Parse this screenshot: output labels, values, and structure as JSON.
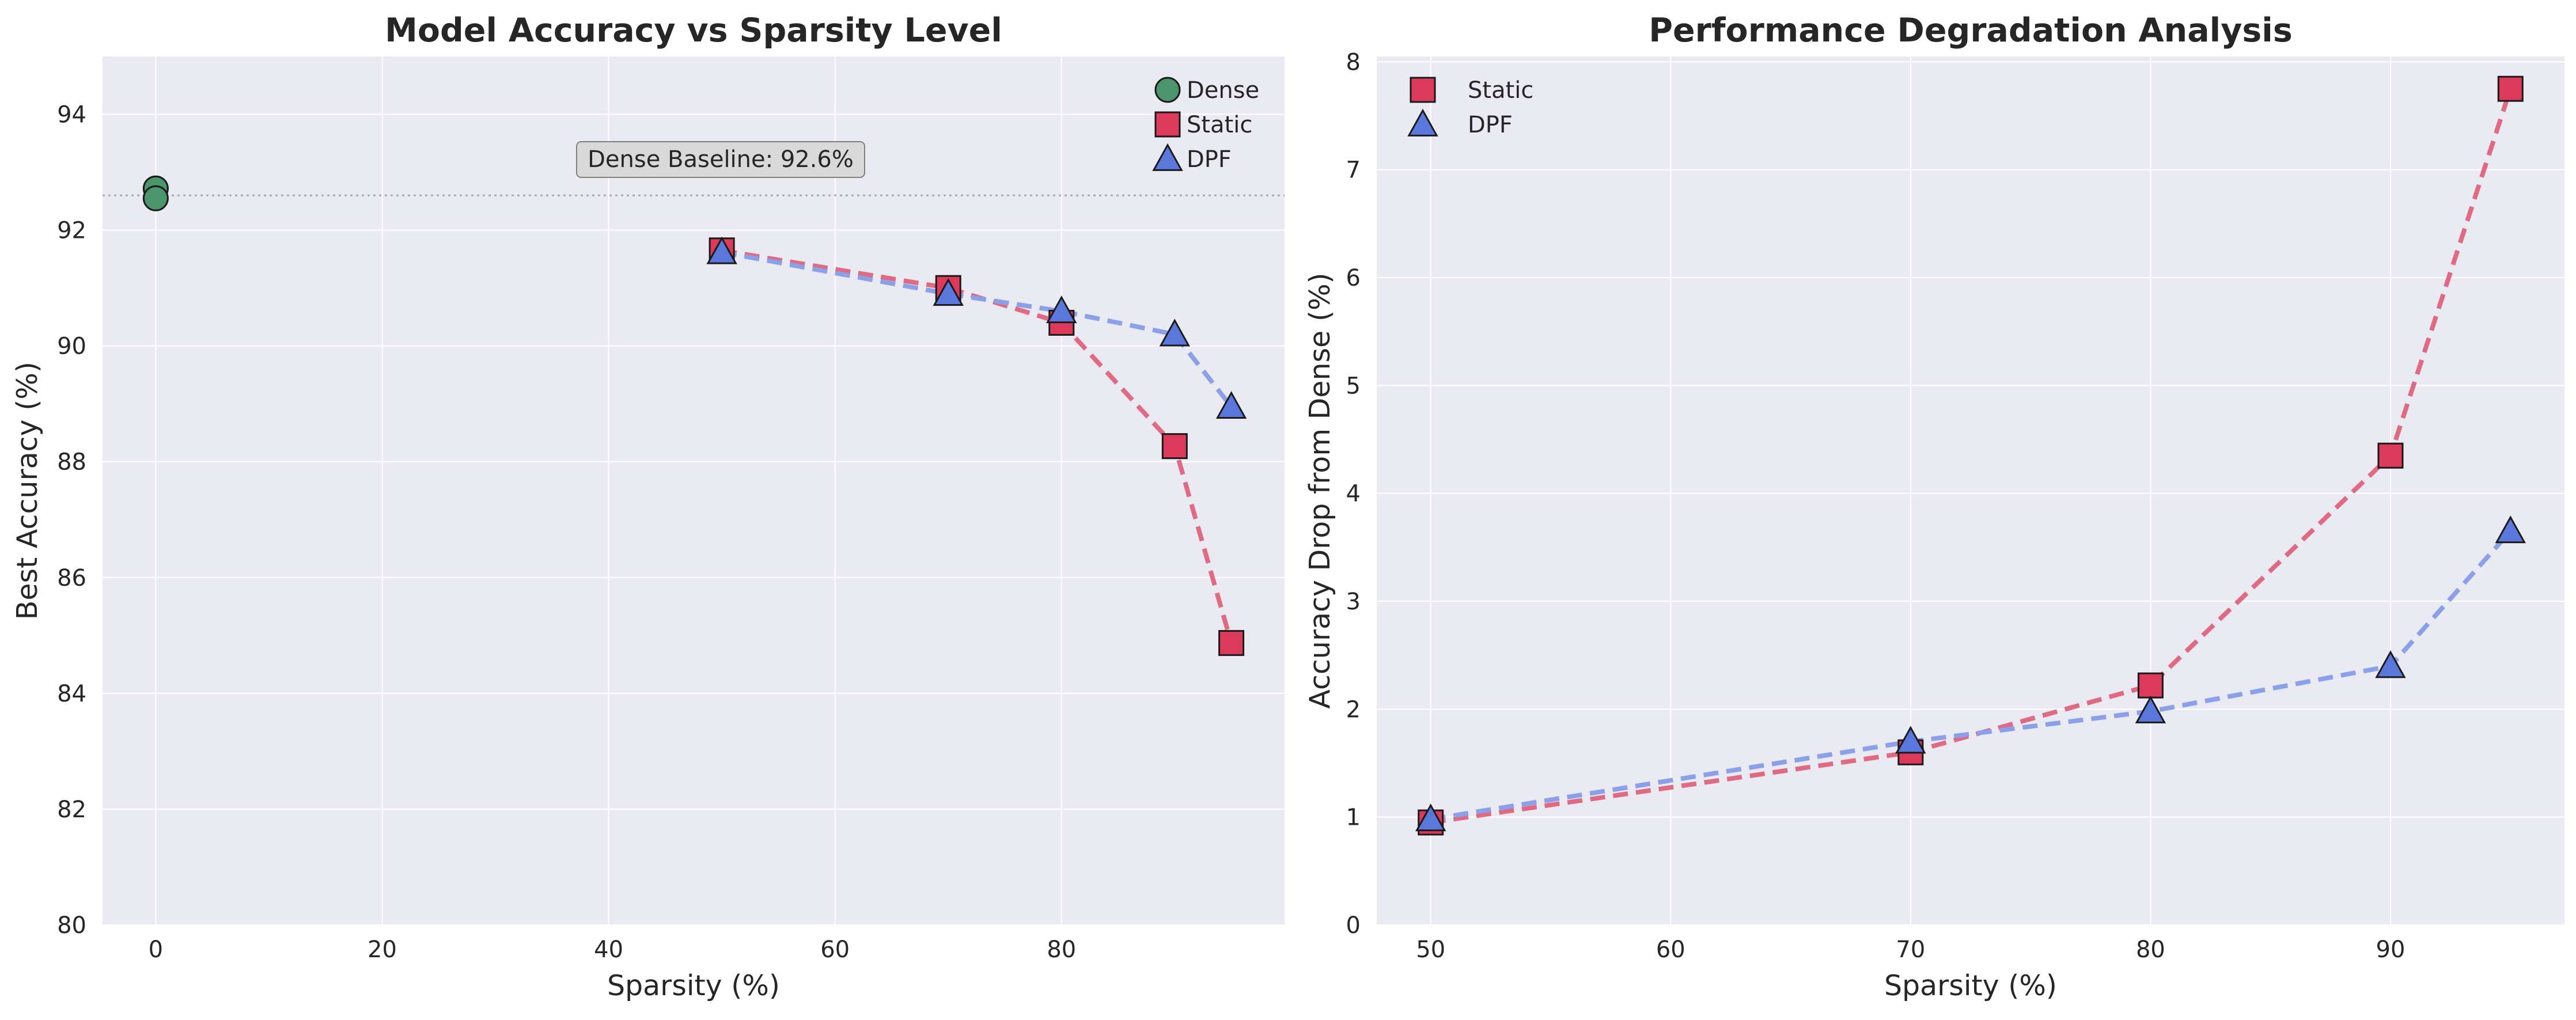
{
  "colors": {
    "background": "#eaeaf2",
    "grid": "#ffffff",
    "dense": "#4c956c",
    "static": "#dc3a5a",
    "dpf": "#5a78dc",
    "static_line": "#e06a82",
    "dpf_line": "#8ba0e8",
    "baseline_line": "#a8a8b8"
  },
  "chart_data": [
    {
      "type": "scatter",
      "title": "Model Accuracy vs Sparsity Level",
      "xlabel": "Sparsity (%)",
      "ylabel": "Best Accuracy (%)",
      "xlim": [
        -4.7,
        99.7
      ],
      "ylim": [
        80,
        95
      ],
      "xticks": [
        0,
        20,
        40,
        60,
        80
      ],
      "yticks": [
        80,
        82,
        84,
        86,
        88,
        90,
        92,
        94
      ],
      "grid": true,
      "legend_position": "top-right",
      "series": [
        {
          "name": "Dense",
          "marker": "circle",
          "line": false,
          "x": [
            0,
            0
          ],
          "y": [
            92.72,
            92.55
          ]
        },
        {
          "name": "Static",
          "marker": "square",
          "line": true,
          "x": [
            50,
            70,
            80,
            90,
            95
          ],
          "y": [
            91.65,
            91.0,
            90.4,
            88.27,
            84.87
          ]
        },
        {
          "name": "DPF",
          "marker": "triangle",
          "line": true,
          "x": [
            50,
            70,
            80,
            90,
            95
          ],
          "y": [
            91.62,
            90.9,
            90.6,
            90.2,
            88.95
          ]
        }
      ],
      "reference_line": {
        "y": 92.6
      },
      "annotation": {
        "text": "Dense Baseline: 92.6%",
        "x": 47,
        "y": 93.2
      }
    },
    {
      "type": "line",
      "title": "Performance Degradation Analysis",
      "xlabel": "Sparsity (%)",
      "ylabel": "Accuracy Drop from Dense (%)",
      "xlim": [
        47.75,
        97.25
      ],
      "ylim": [
        0,
        8.05
      ],
      "xticks": [
        50,
        60,
        70,
        80,
        90
      ],
      "yticks": [
        0,
        1,
        2,
        3,
        4,
        5,
        6,
        7,
        8
      ],
      "grid": true,
      "legend_position": "top-left",
      "series": [
        {
          "name": "Static",
          "marker": "square",
          "line": true,
          "x": [
            50,
            70,
            80,
            90,
            95
          ],
          "y": [
            0.95,
            1.6,
            2.22,
            4.35,
            7.75
          ]
        },
        {
          "name": "DPF",
          "marker": "triangle",
          "line": true,
          "x": [
            50,
            70,
            80,
            90,
            95
          ],
          "y": [
            0.98,
            1.7,
            1.98,
            2.4,
            3.65
          ]
        }
      ]
    }
  ]
}
